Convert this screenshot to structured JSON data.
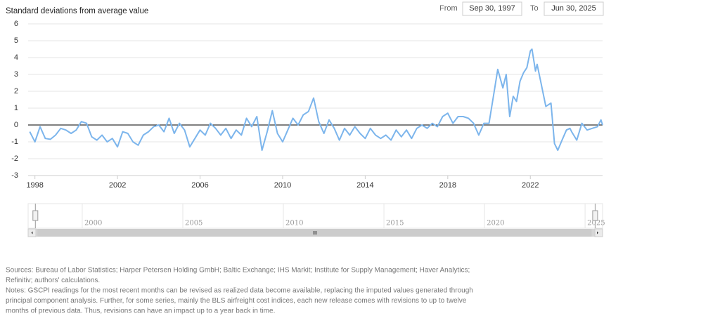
{
  "chart_data": {
    "type": "line",
    "ylabel": "Standard deviations from average value",
    "x": [
      1997.75,
      1998.0,
      1998.25,
      1998.5,
      1998.75,
      1999.0,
      1999.25,
      1999.5,
      1999.75,
      2000.0,
      2000.25,
      2000.5,
      2000.75,
      2001.0,
      2001.25,
      2001.5,
      2001.75,
      2002.0,
      2002.25,
      2002.5,
      2002.75,
      2003.0,
      2003.25,
      2003.5,
      2003.75,
      2004.0,
      2004.25,
      2004.5,
      2004.75,
      2005.0,
      2005.25,
      2005.5,
      2005.75,
      2006.0,
      2006.25,
      2006.5,
      2006.75,
      2007.0,
      2007.25,
      2007.5,
      2007.75,
      2008.0,
      2008.25,
      2008.5,
      2008.75,
      2009.0,
      2009.25,
      2009.5,
      2009.75,
      2010.0,
      2010.25,
      2010.5,
      2010.75,
      2011.0,
      2011.25,
      2011.5,
      2011.75,
      2012.0,
      2012.25,
      2012.5,
      2012.75,
      2013.0,
      2013.25,
      2013.5,
      2013.75,
      2014.0,
      2014.25,
      2014.5,
      2014.75,
      2015.0,
      2015.25,
      2015.5,
      2015.75,
      2016.0,
      2016.25,
      2016.5,
      2016.75,
      2017.0,
      2017.25,
      2017.5,
      2017.75,
      2018.0,
      2018.25,
      2018.5,
      2018.75,
      2019.0,
      2019.25,
      2019.5,
      2019.75,
      2020.0,
      2020.25,
      2020.42,
      2020.67,
      2020.83,
      2021.0,
      2021.17,
      2021.33,
      2021.5,
      2021.67,
      2021.83,
      2022.0,
      2022.08,
      2022.25,
      2022.33,
      2022.5,
      2022.75,
      2023.0,
      2023.17,
      2023.33,
      2023.5,
      2023.75,
      2023.92,
      2024.0,
      2024.25,
      2024.5,
      2024.75,
      2025.0,
      2025.25,
      2025.42,
      2025.5
    ],
    "series": [
      {
        "color": "#7cb5ec",
        "values": [
          -0.4,
          -1.0,
          -0.1,
          -0.8,
          -0.85,
          -0.6,
          -0.2,
          -0.3,
          -0.5,
          -0.3,
          0.2,
          0.1,
          -0.7,
          -0.9,
          -0.6,
          -1.0,
          -0.8,
          -1.3,
          -0.4,
          -0.5,
          -1.0,
          -1.2,
          -0.6,
          -0.4,
          -0.1,
          0.0,
          -0.4,
          0.4,
          -0.5,
          0.1,
          -0.3,
          -1.3,
          -0.8,
          -0.3,
          -0.6,
          0.1,
          -0.2,
          -0.6,
          -0.2,
          -0.8,
          -0.3,
          -0.6,
          0.4,
          -0.1,
          0.5,
          -1.5,
          -0.4,
          0.85,
          -0.5,
          -1.0,
          -0.3,
          0.4,
          0.0,
          0.6,
          0.8,
          1.6,
          0.2,
          -0.5,
          0.3,
          -0.2,
          -0.9,
          -0.2,
          -0.6,
          -0.1,
          -0.5,
          -0.8,
          -0.2,
          -0.6,
          -0.8,
          -0.6,
          -0.9,
          -0.3,
          -0.7,
          -0.3,
          -0.8,
          -0.2,
          0.0,
          -0.2,
          0.1,
          -0.1,
          0.5,
          0.7,
          0.1,
          0.5,
          0.5,
          0.4,
          0.1,
          -0.6,
          0.1,
          0.1,
          2.0,
          3.3,
          2.2,
          3.0,
          0.5,
          1.7,
          1.4,
          2.6,
          3.1,
          3.4,
          4.4,
          4.5,
          3.2,
          3.6,
          2.6,
          1.1,
          1.3,
          -1.1,
          -1.5,
          -1.0,
          -0.3,
          -0.2,
          -0.4,
          -0.9,
          0.1,
          -0.3,
          -0.2,
          -0.1,
          0.3,
          0.0
        ]
      }
    ],
    "xlim": [
      1997.67,
      2025.5
    ],
    "xticks": [
      1998,
      2002,
      2006,
      2010,
      2014,
      2018,
      2022
    ],
    "ylim": [
      -3,
      6
    ],
    "yticks": [
      -3,
      -2,
      -1,
      0,
      1,
      2,
      3,
      4,
      5,
      6
    ],
    "grid": true
  },
  "range_selector": {
    "from_label": "From",
    "from": "Sep 30, 1997",
    "to_label": "To",
    "to": "Jun 30, 2025"
  },
  "navigator": {
    "xlim": [
      1997.31,
      2025.87
    ],
    "xticks": [
      2000,
      2005,
      2010,
      2015,
      2020,
      2025
    ]
  },
  "notes": {
    "lines": [
      "Sources: Bureau of Labor Statistics; Harper Petersen Holding GmbH; Baltic Exchange; IHS Markit; Institute for Supply Management; Haver Analytics;",
      "Refinitiv; authors' calculations.",
      "Notes: GSCPI readings for the most recent months can be revised as realized data become available, replacing the imputed values generated through",
      "principal component analysis. Further, for some series, mainly the BLS airfreight cost indices, each new release comes with revisions to up to twelve",
      "months of previous data. Thus, revisions can have an impact up to a year back in time."
    ]
  }
}
